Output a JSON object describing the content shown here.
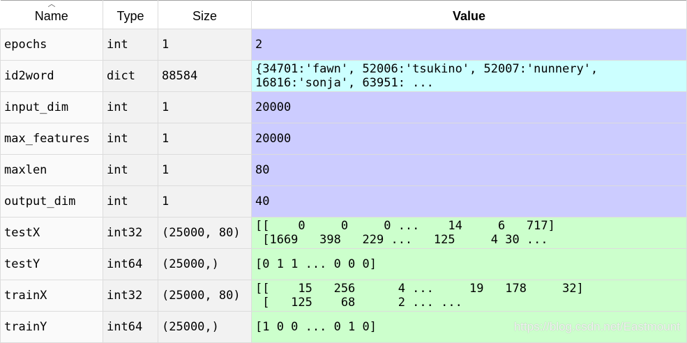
{
  "header": {
    "name": "Name",
    "type": "Type",
    "size": "Size",
    "value": "Value"
  },
  "colors": {
    "int": "#ccccff",
    "dict": "#ccffff",
    "array": "#ccffcc"
  },
  "rows": [
    {
      "name": "epochs",
      "type": "int",
      "size": "1",
      "value": "2",
      "color": "#ccccff"
    },
    {
      "name": "id2word",
      "type": "dict",
      "size": "88584",
      "value": "{34701:'fawn', 52006:'tsukino', 52007:'nunnery',\n16816:'sonja', 63951: ...",
      "color": "#ccffff"
    },
    {
      "name": "input_dim",
      "type": "int",
      "size": "1",
      "value": "20000",
      "color": "#ccccff"
    },
    {
      "name": "max_features",
      "type": "int",
      "size": "1",
      "value": "20000",
      "color": "#ccccff"
    },
    {
      "name": "maxlen",
      "type": "int",
      "size": "1",
      "value": "80",
      "color": "#ccccff"
    },
    {
      "name": "output_dim",
      "type": "int",
      "size": "1",
      "value": "40",
      "color": "#ccccff"
    },
    {
      "name": "testX",
      "type": "int32",
      "size": "(25000, 80)",
      "value": "[[    0     0     0 ...    14     6   717]\n [1669   398   229 ...   125     4 30 ...",
      "color": "#ccffcc"
    },
    {
      "name": "testY",
      "type": "int64",
      "size": "(25000,)",
      "value": "[0 1 1 ... 0 0 0]",
      "color": "#ccffcc"
    },
    {
      "name": "trainX",
      "type": "int32",
      "size": "(25000, 80)",
      "value": "[[    15   256      4 ...     19   178     32]\n [   125    68      2 ... ...",
      "color": "#ccffcc"
    },
    {
      "name": "trainY",
      "type": "int64",
      "size": "(25000,)",
      "value": "[1 0 0 ... 0 1 0]",
      "color": "#ccffcc"
    }
  ],
  "watermark": "https://blog.csdn.net/Eastmount"
}
